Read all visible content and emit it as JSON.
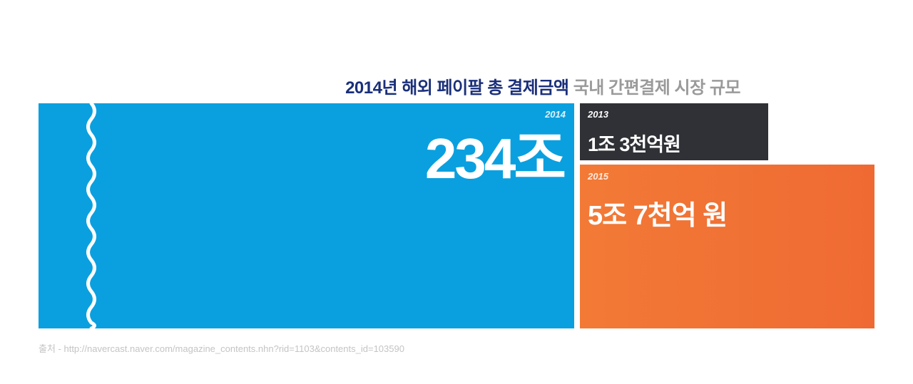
{
  "title": {
    "primary": "2014년 해외 페이팔 총 결제금액",
    "secondary": "국내 간편결제 시장 규모"
  },
  "chart_data": {
    "type": "bar",
    "items": [
      {
        "year": "2014",
        "label": "234조",
        "value": 234,
        "unit": "조",
        "color": "#0aa0df"
      },
      {
        "year": "2013",
        "label": "1조 3천억원",
        "value": 1.3,
        "unit": "조",
        "color": "#303136"
      },
      {
        "year": "2015",
        "label": "5조 7천억 원",
        "value": 5.7,
        "unit": "조",
        "color": "#f27a36"
      }
    ],
    "axis_break": true
  },
  "source": "출처 - http://navercast.naver.com/magazine_contents.nhn?rid=1103&contents_id=103590"
}
